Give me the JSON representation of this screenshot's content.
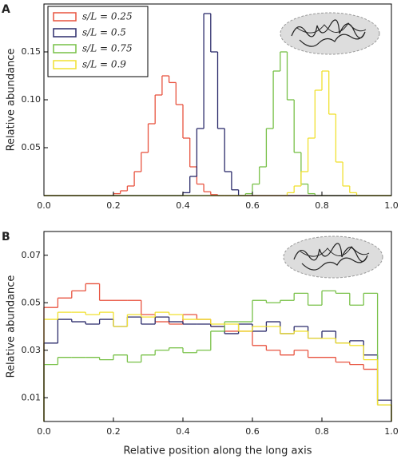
{
  "chart_data": [
    {
      "type": "histogram",
      "panel_label": "A",
      "ylabel": "Relative abundance",
      "bins": [
        0,
        0.02,
        0.04,
        0.06,
        0.08,
        0.1,
        0.12,
        0.14,
        0.16,
        0.18,
        0.2,
        0.22,
        0.24,
        0.26,
        0.28,
        0.3,
        0.32,
        0.34,
        0.36,
        0.38,
        0.4,
        0.42,
        0.44,
        0.46,
        0.48,
        0.5,
        0.52,
        0.54,
        0.56,
        0.58,
        0.6,
        0.62,
        0.64,
        0.66,
        0.68,
        0.7,
        0.72,
        0.74,
        0.76,
        0.78,
        0.8,
        0.82,
        0.84,
        0.86,
        0.88,
        0.9,
        0.92,
        0.94,
        0.96,
        0.98,
        1
      ],
      "series": [
        {
          "name": "s/L = 0.25",
          "color": "#e8533f",
          "values": [
            0,
            0,
            0,
            0,
            0,
            0,
            0,
            0,
            0,
            0,
            0.002,
            0.005,
            0.01,
            0.025,
            0.045,
            0.075,
            0.105,
            0.125,
            0.118,
            0.095,
            0.06,
            0.03,
            0.012,
            0.004,
            0.001,
            0,
            0,
            0,
            0,
            0,
            0,
            0,
            0,
            0,
            0,
            0,
            0,
            0,
            0,
            0,
            0,
            0,
            0,
            0,
            0,
            0,
            0,
            0,
            0,
            0
          ]
        },
        {
          "name": "s/L = 0.5",
          "color": "#2b2b6b",
          "values": [
            0,
            0,
            0,
            0,
            0,
            0,
            0,
            0,
            0,
            0,
            0,
            0,
            0,
            0,
            0,
            0,
            0,
            0,
            0,
            0,
            0.003,
            0.02,
            0.07,
            0.19,
            0.15,
            0.07,
            0.025,
            0.006,
            0,
            0,
            0,
            0,
            0,
            0,
            0,
            0,
            0,
            0,
            0,
            0,
            0,
            0,
            0,
            0,
            0,
            0,
            0,
            0,
            0,
            0
          ]
        },
        {
          "name": "s/L = 0.75",
          "color": "#77c046",
          "values": [
            0,
            0,
            0,
            0,
            0,
            0,
            0,
            0,
            0,
            0,
            0,
            0,
            0,
            0,
            0,
            0,
            0,
            0,
            0,
            0,
            0,
            0,
            0,
            0,
            0,
            0,
            0,
            0,
            0,
            0.002,
            0.012,
            0.03,
            0.07,
            0.13,
            0.15,
            0.1,
            0.045,
            0.012,
            0.002,
            0,
            0,
            0,
            0,
            0,
            0,
            0,
            0,
            0,
            0,
            0
          ]
        },
        {
          "name": "s/L = 0.9",
          "color": "#f0e030",
          "values": [
            0,
            0,
            0,
            0,
            0,
            0,
            0,
            0,
            0,
            0,
            0,
            0,
            0,
            0,
            0,
            0,
            0,
            0,
            0,
            0,
            0,
            0,
            0,
            0,
            0,
            0,
            0,
            0,
            0,
            0,
            0,
            0,
            0,
            0,
            0,
            0.003,
            0.01,
            0.025,
            0.06,
            0.11,
            0.13,
            0.085,
            0.035,
            0.01,
            0.003,
            0,
            0,
            0,
            0,
            0
          ]
        }
      ],
      "xlim": [
        0,
        1
      ],
      "ylim": [
        0,
        0.2
      ],
      "xticks": [
        {
          "value": 0,
          "label": "0.0"
        },
        0.2,
        0.4,
        0.6,
        0.8,
        {
          "value": 1,
          "label": "1.0"
        }
      ],
      "yticks": [
        0.05,
        {
          "value": 0.1,
          "label": "0.10"
        },
        0.15
      ],
      "legend": "upper left"
    },
    {
      "type": "histogram",
      "panel_label": "B",
      "ylabel": "Relative abundance",
      "xlabel": "Relative position along the long axis",
      "bins": [
        0,
        0.04,
        0.08,
        0.12,
        0.16,
        0.2,
        0.24,
        0.28,
        0.32,
        0.36,
        0.4,
        0.44,
        0.48,
        0.52,
        0.56,
        0.6,
        0.64,
        0.68,
        0.72,
        0.76,
        0.8,
        0.84,
        0.88,
        0.92,
        0.96,
        1
      ],
      "series": [
        {
          "color": "#e8533f",
          "values": [
            0.048,
            0.052,
            0.055,
            0.058,
            0.051,
            0.051,
            0.051,
            0.045,
            0.042,
            0.041,
            0.045,
            0.043,
            0.04,
            0.038,
            0.038,
            0.032,
            0.03,
            0.028,
            0.03,
            0.027,
            0.027,
            0.025,
            0.024,
            0.022,
            0.007
          ]
        },
        {
          "color": "#2b2b6b",
          "values": [
            0.033,
            0.043,
            0.042,
            0.041,
            0.043,
            0.04,
            0.044,
            0.041,
            0.044,
            0.042,
            0.041,
            0.041,
            0.04,
            0.037,
            0.041,
            0.038,
            0.042,
            0.037,
            0.04,
            0.035,
            0.038,
            0.033,
            0.034,
            0.028,
            0.009
          ]
        },
        {
          "color": "#77c046",
          "values": [
            0.024,
            0.027,
            0.027,
            0.027,
            0.026,
            0.028,
            0.025,
            0.028,
            0.03,
            0.031,
            0.029,
            0.03,
            0.038,
            0.042,
            0.042,
            0.051,
            0.05,
            0.051,
            0.054,
            0.049,
            0.055,
            0.054,
            0.049,
            0.054,
            0.007
          ]
        },
        {
          "color": "#f0e030",
          "values": [
            0.043,
            0.046,
            0.046,
            0.045,
            0.046,
            0.04,
            0.045,
            0.044,
            0.046,
            0.045,
            0.043,
            0.043,
            0.041,
            0.041,
            0.038,
            0.04,
            0.04,
            0.037,
            0.038,
            0.035,
            0.035,
            0.033,
            0.032,
            0.026,
            0.007
          ]
        }
      ],
      "xlim": [
        0,
        1
      ],
      "ylim": [
        0,
        0.08
      ],
      "xticks": [
        {
          "value": 0,
          "label": "0.0"
        },
        0.2,
        0.4,
        0.6,
        0.8,
        {
          "value": 1,
          "label": "1.0"
        }
      ],
      "yticks": [
        0.01,
        0.03,
        0.05,
        0.07
      ]
    }
  ]
}
